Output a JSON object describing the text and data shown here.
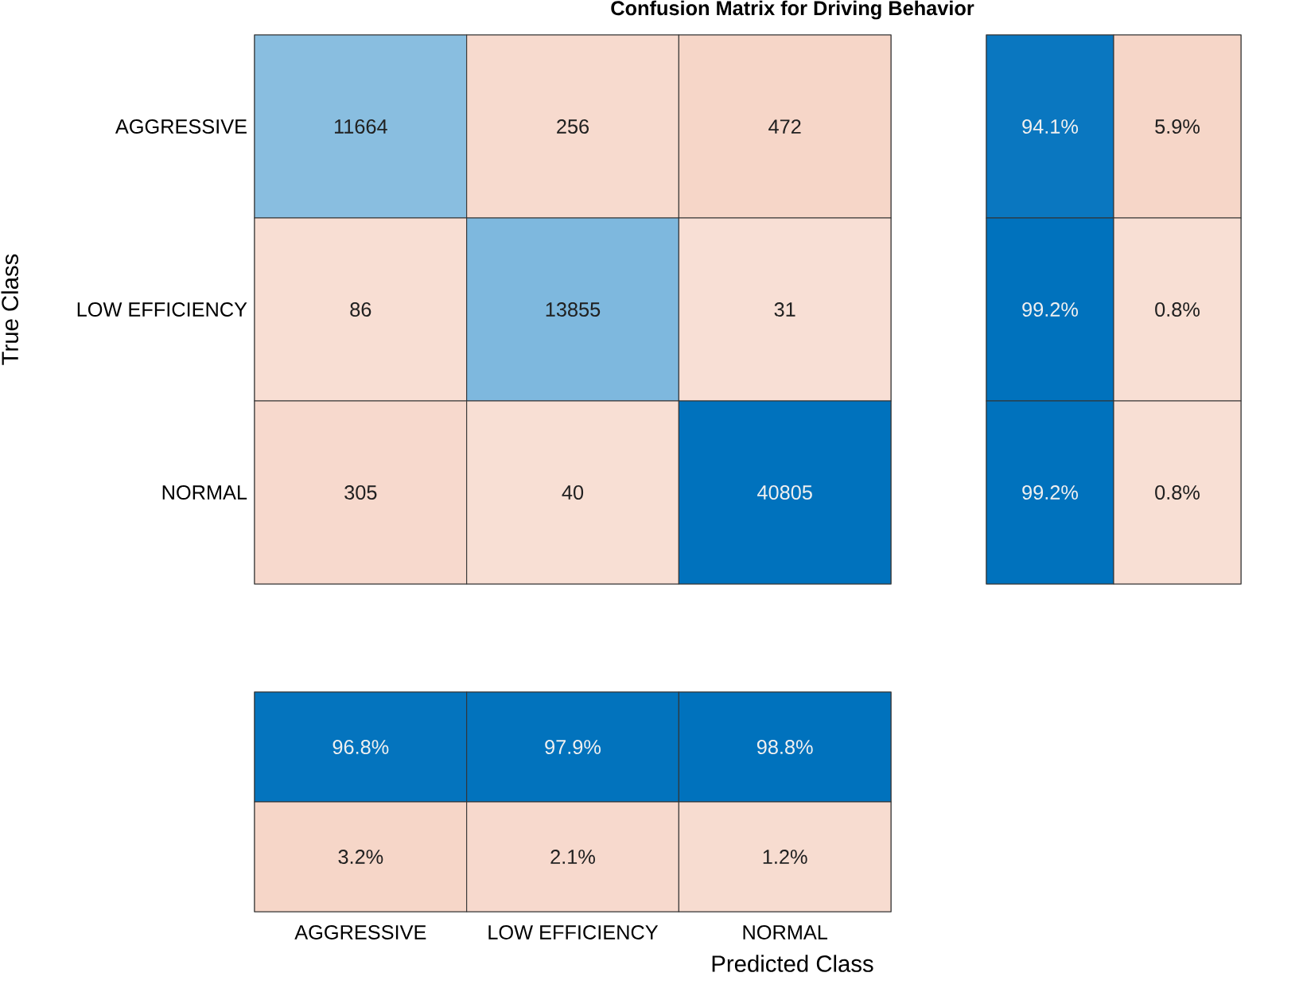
{
  "chart_data": [
    {
      "type": "heatmap",
      "title": "Confusion Matrix for Driving Behavior",
      "ylabel": "True Class",
      "categories": [
        null,
        null,
        null
      ],
      "y_categories": [
        "AGGRESSIVE",
        "LOW EFFICIENCY",
        "NORMAL"
      ],
      "cells": [
        [
          11664,
          256,
          472
        ],
        [
          86,
          13855,
          31
        ],
        [
          305,
          40,
          40805
        ]
      ],
      "cell_labels": [
        [
          "11664",
          "256",
          "472"
        ],
        [
          "86",
          "13855",
          "31"
        ],
        [
          "305",
          "40",
          "40805"
        ]
      ],
      "tick_labels": "y"
    },
    {
      "type": "heatmap",
      "categories": [
        null,
        null
      ],
      "y_categories": [
        null,
        null,
        null
      ],
      "cells": [
        [
          94.1,
          5.9
        ],
        [
          99.2,
          0.8
        ],
        [
          99.2,
          0.8
        ]
      ],
      "cell_labels": [
        [
          "94.1%",
          "5.9%"
        ],
        [
          "99.2%",
          "0.8%"
        ],
        [
          "99.2%",
          "0.8%"
        ]
      ],
      "tick_labels": false
    },
    {
      "type": "heatmap",
      "xlabel": "Predicted Class",
      "categories": [
        "AGGRESSIVE",
        "LOW EFFICIENCY",
        "NORMAL"
      ],
      "y_categories": [
        null,
        null
      ],
      "cells": [
        [
          96.8,
          97.9,
          98.8
        ],
        [
          3.2,
          2.1,
          1.2
        ]
      ],
      "cell_labels": [
        [
          "96.8%",
          "97.9%",
          "98.8%"
        ],
        [
          "3.2%",
          "2.1%",
          "1.2%"
        ]
      ],
      "tick_labels": "x"
    }
  ]
}
